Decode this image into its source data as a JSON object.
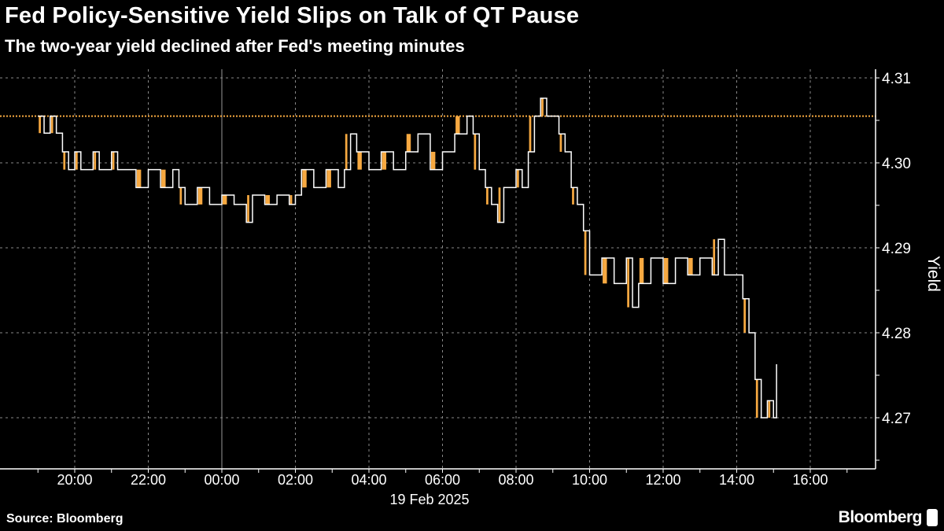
{
  "title": "Fed Policy-Sensitive Yield Slips on Talk of QT Pause",
  "subtitle": "The two-year yield declined after Fed's meeting minutes",
  "source": "Source: Bloomberg",
  "brand": "Bloomberg",
  "colors": {
    "background": "#000000",
    "line": "#ffffff",
    "fill": "#f7a941",
    "reference_line": "#f7a941"
  },
  "chart_data": {
    "type": "line",
    "title": "Fed Policy-Sensitive Yield Slips on Talk of QT Pause",
    "subtitle": "The two-year yield declined after Fed's meeting minutes",
    "xlabel": "19 Feb 2025",
    "ylabel": "Yield",
    "y_axis_side": "right",
    "ylim": [
      4.265,
      4.311
    ],
    "yticks": [
      4.27,
      4.28,
      4.29,
      4.3,
      4.31
    ],
    "ytick_labels": [
      "4.27",
      "4.28",
      "4.29",
      "4.30",
      "4.31"
    ],
    "xlim": [
      "2025-02-18T18:00",
      "2025-02-19T17:30"
    ],
    "xticks": [
      "2025-02-18T20:00",
      "2025-02-18T22:00",
      "2025-02-19T00:00",
      "2025-02-19T02:00",
      "2025-02-19T04:00",
      "2025-02-19T06:00",
      "2025-02-19T08:00",
      "2025-02-19T10:00",
      "2025-02-19T12:00",
      "2025-02-19T14:00",
      "2025-02-19T16:00"
    ],
    "xtick_labels": [
      "20:00",
      "22:00",
      "00:00",
      "02:00",
      "04:00",
      "06:00",
      "08:00",
      "10:00",
      "12:00",
      "14:00",
      "16:00"
    ],
    "grid": true,
    "reference_line": 4.3055,
    "series": [
      {
        "points": [
          [
            "2025-02-18T19:00",
            4.3055
          ],
          [
            "2025-02-18T19:10",
            4.3035
          ],
          [
            "2025-02-18T19:20",
            4.3055
          ],
          [
            "2025-02-18T19:30",
            4.3035
          ],
          [
            "2025-02-18T19:40",
            4.3013
          ],
          [
            "2025-02-18T19:50",
            4.2992
          ],
          [
            "2025-02-18T20:00",
            4.3013
          ],
          [
            "2025-02-18T20:10",
            4.2992
          ],
          [
            "2025-02-18T20:30",
            4.3013
          ],
          [
            "2025-02-18T20:40",
            4.2992
          ],
          [
            "2025-02-18T21:00",
            4.3013
          ],
          [
            "2025-02-18T21:10",
            4.2992
          ],
          [
            "2025-02-18T21:40",
            4.2971
          ],
          [
            "2025-02-18T22:00",
            4.2992
          ],
          [
            "2025-02-18T22:20",
            4.2971
          ],
          [
            "2025-02-18T22:40",
            4.2992
          ],
          [
            "2025-02-18T22:50",
            4.2971
          ],
          [
            "2025-02-18T23:00",
            4.2951
          ],
          [
            "2025-02-18T23:20",
            4.2971
          ],
          [
            "2025-02-18T23:40",
            4.2951
          ],
          [
            "2025-02-19T00:00",
            4.2962
          ],
          [
            "2025-02-19T00:20",
            4.2951
          ],
          [
            "2025-02-19T00:40",
            4.293
          ],
          [
            "2025-02-19T00:50",
            4.2962
          ],
          [
            "2025-02-19T01:10",
            4.2951
          ],
          [
            "2025-02-19T01:30",
            4.2962
          ],
          [
            "2025-02-19T01:50",
            4.2951
          ],
          [
            "2025-02-19T02:00",
            4.2962
          ],
          [
            "2025-02-19T02:10",
            4.2992
          ],
          [
            "2025-02-19T02:30",
            4.2971
          ],
          [
            "2025-02-19T02:50",
            4.2992
          ],
          [
            "2025-02-19T03:10",
            4.2971
          ],
          [
            "2025-02-19T03:20",
            4.2992
          ],
          [
            "2025-02-19T03:30",
            4.3034
          ],
          [
            "2025-02-19T03:40",
            4.3013
          ],
          [
            "2025-02-19T04:00",
            4.2992
          ],
          [
            "2025-02-19T04:20",
            4.3013
          ],
          [
            "2025-02-19T04:40",
            4.2992
          ],
          [
            "2025-02-19T05:00",
            4.3013
          ],
          [
            "2025-02-19T05:20",
            4.3034
          ],
          [
            "2025-02-19T05:40",
            4.2992
          ],
          [
            "2025-02-19T06:00",
            4.3013
          ],
          [
            "2025-02-19T06:20",
            4.3034
          ],
          [
            "2025-02-19T06:40",
            4.3055
          ],
          [
            "2025-02-19T06:50",
            4.3034
          ],
          [
            "2025-02-19T07:00",
            4.2992
          ],
          [
            "2025-02-19T07:10",
            4.2971
          ],
          [
            "2025-02-19T07:20",
            4.2951
          ],
          [
            "2025-02-19T07:30",
            4.293
          ],
          [
            "2025-02-19T07:40",
            4.2971
          ],
          [
            "2025-02-19T08:00",
            4.2992
          ],
          [
            "2025-02-19T08:10",
            4.2971
          ],
          [
            "2025-02-19T08:20",
            4.3013
          ],
          [
            "2025-02-19T08:30",
            4.3055
          ],
          [
            "2025-02-19T08:40",
            4.3076
          ],
          [
            "2025-02-19T08:50",
            4.3055
          ],
          [
            "2025-02-19T09:10",
            4.3034
          ],
          [
            "2025-02-19T09:20",
            4.3013
          ],
          [
            "2025-02-19T09:30",
            4.2971
          ],
          [
            "2025-02-19T09:40",
            4.2951
          ],
          [
            "2025-02-19T09:50",
            4.292
          ],
          [
            "2025-02-19T10:00",
            4.2868
          ],
          [
            "2025-02-19T10:20",
            4.2888
          ],
          [
            "2025-02-19T10:40",
            4.2858
          ],
          [
            "2025-02-19T11:00",
            4.2888
          ],
          [
            "2025-02-19T11:10",
            4.283
          ],
          [
            "2025-02-19T11:20",
            4.2858
          ],
          [
            "2025-02-19T11:40",
            4.2888
          ],
          [
            "2025-02-19T12:00",
            4.2858
          ],
          [
            "2025-02-19T12:20",
            4.2888
          ],
          [
            "2025-02-19T12:40",
            4.2868
          ],
          [
            "2025-02-19T13:00",
            4.2888
          ],
          [
            "2025-02-19T13:20",
            4.2868
          ],
          [
            "2025-02-19T13:30",
            4.291
          ],
          [
            "2025-02-19T13:40",
            4.2868
          ],
          [
            "2025-02-19T14:00",
            4.2868
          ],
          [
            "2025-02-19T14:10",
            4.284
          ],
          [
            "2025-02-19T14:20",
            4.28
          ],
          [
            "2025-02-19T14:30",
            4.2745
          ],
          [
            "2025-02-19T14:40",
            4.27
          ],
          [
            "2025-02-19T14:50",
            4.272
          ],
          [
            "2025-02-19T15:00",
            4.27
          ],
          [
            "2025-02-19T15:05",
            4.2763
          ]
        ]
      }
    ]
  }
}
